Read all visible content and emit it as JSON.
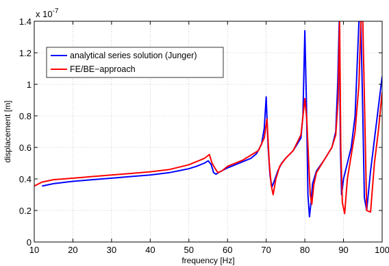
{
  "chart_data": {
    "type": "line",
    "title": "",
    "xlabel": "frequency [Hz]",
    "ylabel": "displacement [m]",
    "y_exponent_label": "x 10",
    "y_exponent_power": "-7",
    "xlim": [
      10,
      100
    ],
    "ylim": [
      0,
      1.4
    ],
    "xticks": [
      10,
      20,
      30,
      40,
      50,
      60,
      70,
      80,
      90,
      100
    ],
    "yticks": [
      0,
      0.2,
      0.4,
      0.6,
      0.8,
      1,
      1.2,
      1.4
    ],
    "xtick_labels": [
      "10",
      "20",
      "30",
      "40",
      "50",
      "60",
      "70",
      "80",
      "90",
      "100"
    ],
    "ytick_labels": [
      "0",
      "0.2",
      "0.4",
      "0.6",
      "0.8",
      "1",
      "1.2",
      "1.4"
    ],
    "grid": true,
    "legend_position": "top-left",
    "series": [
      {
        "name": "analytical series solution (Junger)",
        "color": "#0000ff",
        "x": [
          12,
          15,
          20,
          25,
          30,
          35,
          40,
          45,
          48,
          50,
          52,
          54,
          55,
          55.8,
          56.4,
          57,
          58,
          60,
          62,
          64,
          66,
          67.5,
          68.8,
          69.5,
          70,
          70.5,
          71,
          71.5,
          72,
          73,
          74,
          75,
          77,
          79,
          79.5,
          80,
          80.4,
          80.8,
          81.2,
          81.6,
          82,
          83,
          85,
          87,
          88,
          88.5,
          88.9,
          89.2,
          89.5,
          90,
          91,
          92,
          93,
          93.5,
          94,
          94.5,
          95,
          95.4,
          96,
          97,
          98,
          99,
          100
        ],
        "y": [
          0.355,
          0.37,
          0.385,
          0.395,
          0.405,
          0.415,
          0.425,
          0.44,
          0.455,
          0.465,
          0.48,
          0.5,
          0.515,
          0.49,
          0.44,
          0.43,
          0.445,
          0.47,
          0.49,
          0.51,
          0.53,
          0.56,
          0.62,
          0.72,
          0.92,
          0.6,
          0.42,
          0.35,
          0.38,
          0.45,
          0.5,
          0.53,
          0.58,
          0.66,
          0.8,
          1.34,
          0.9,
          0.3,
          0.16,
          0.25,
          0.37,
          0.45,
          0.52,
          0.6,
          0.7,
          1.0,
          1.4,
          0.6,
          0.3,
          0.4,
          0.5,
          0.6,
          0.8,
          1.1,
          1.4,
          1.4,
          0.8,
          0.28,
          0.2,
          0.45,
          0.65,
          0.85,
          1.05
        ]
      },
      {
        "name": "FE/BE−approach",
        "color": "#ff0000",
        "x": [
          10,
          12,
          15,
          20,
          25,
          30,
          35,
          40,
          45,
          50,
          52,
          54,
          55.3,
          56,
          56.7,
          57.5,
          58.5,
          60,
          62,
          64,
          66,
          68,
          69.5,
          70.2,
          70.8,
          71.3,
          71.8,
          72.5,
          73.5,
          75,
          77,
          79,
          80,
          80.5,
          81,
          81.4,
          81.8,
          82.3,
          83,
          85,
          87,
          88,
          88.6,
          89,
          89.3,
          89.7,
          90.3,
          91,
          92,
          93,
          94,
          94.5,
          95,
          95.5,
          96,
          97,
          98,
          99,
          100
        ],
        "y": [
          0.355,
          0.38,
          0.395,
          0.405,
          0.415,
          0.425,
          0.435,
          0.445,
          0.46,
          0.49,
          0.51,
          0.53,
          0.555,
          0.5,
          0.47,
          0.44,
          0.45,
          0.48,
          0.5,
          0.52,
          0.55,
          0.58,
          0.66,
          0.78,
          0.5,
          0.36,
          0.3,
          0.4,
          0.48,
          0.53,
          0.58,
          0.68,
          0.91,
          0.78,
          0.5,
          0.3,
          0.24,
          0.36,
          0.44,
          0.52,
          0.6,
          0.68,
          0.9,
          1.4,
          0.6,
          0.25,
          0.18,
          0.4,
          0.55,
          0.7,
          1.0,
          1.4,
          1.4,
          0.8,
          0.2,
          0.19,
          0.5,
          0.7,
          0.95
        ]
      }
    ]
  }
}
